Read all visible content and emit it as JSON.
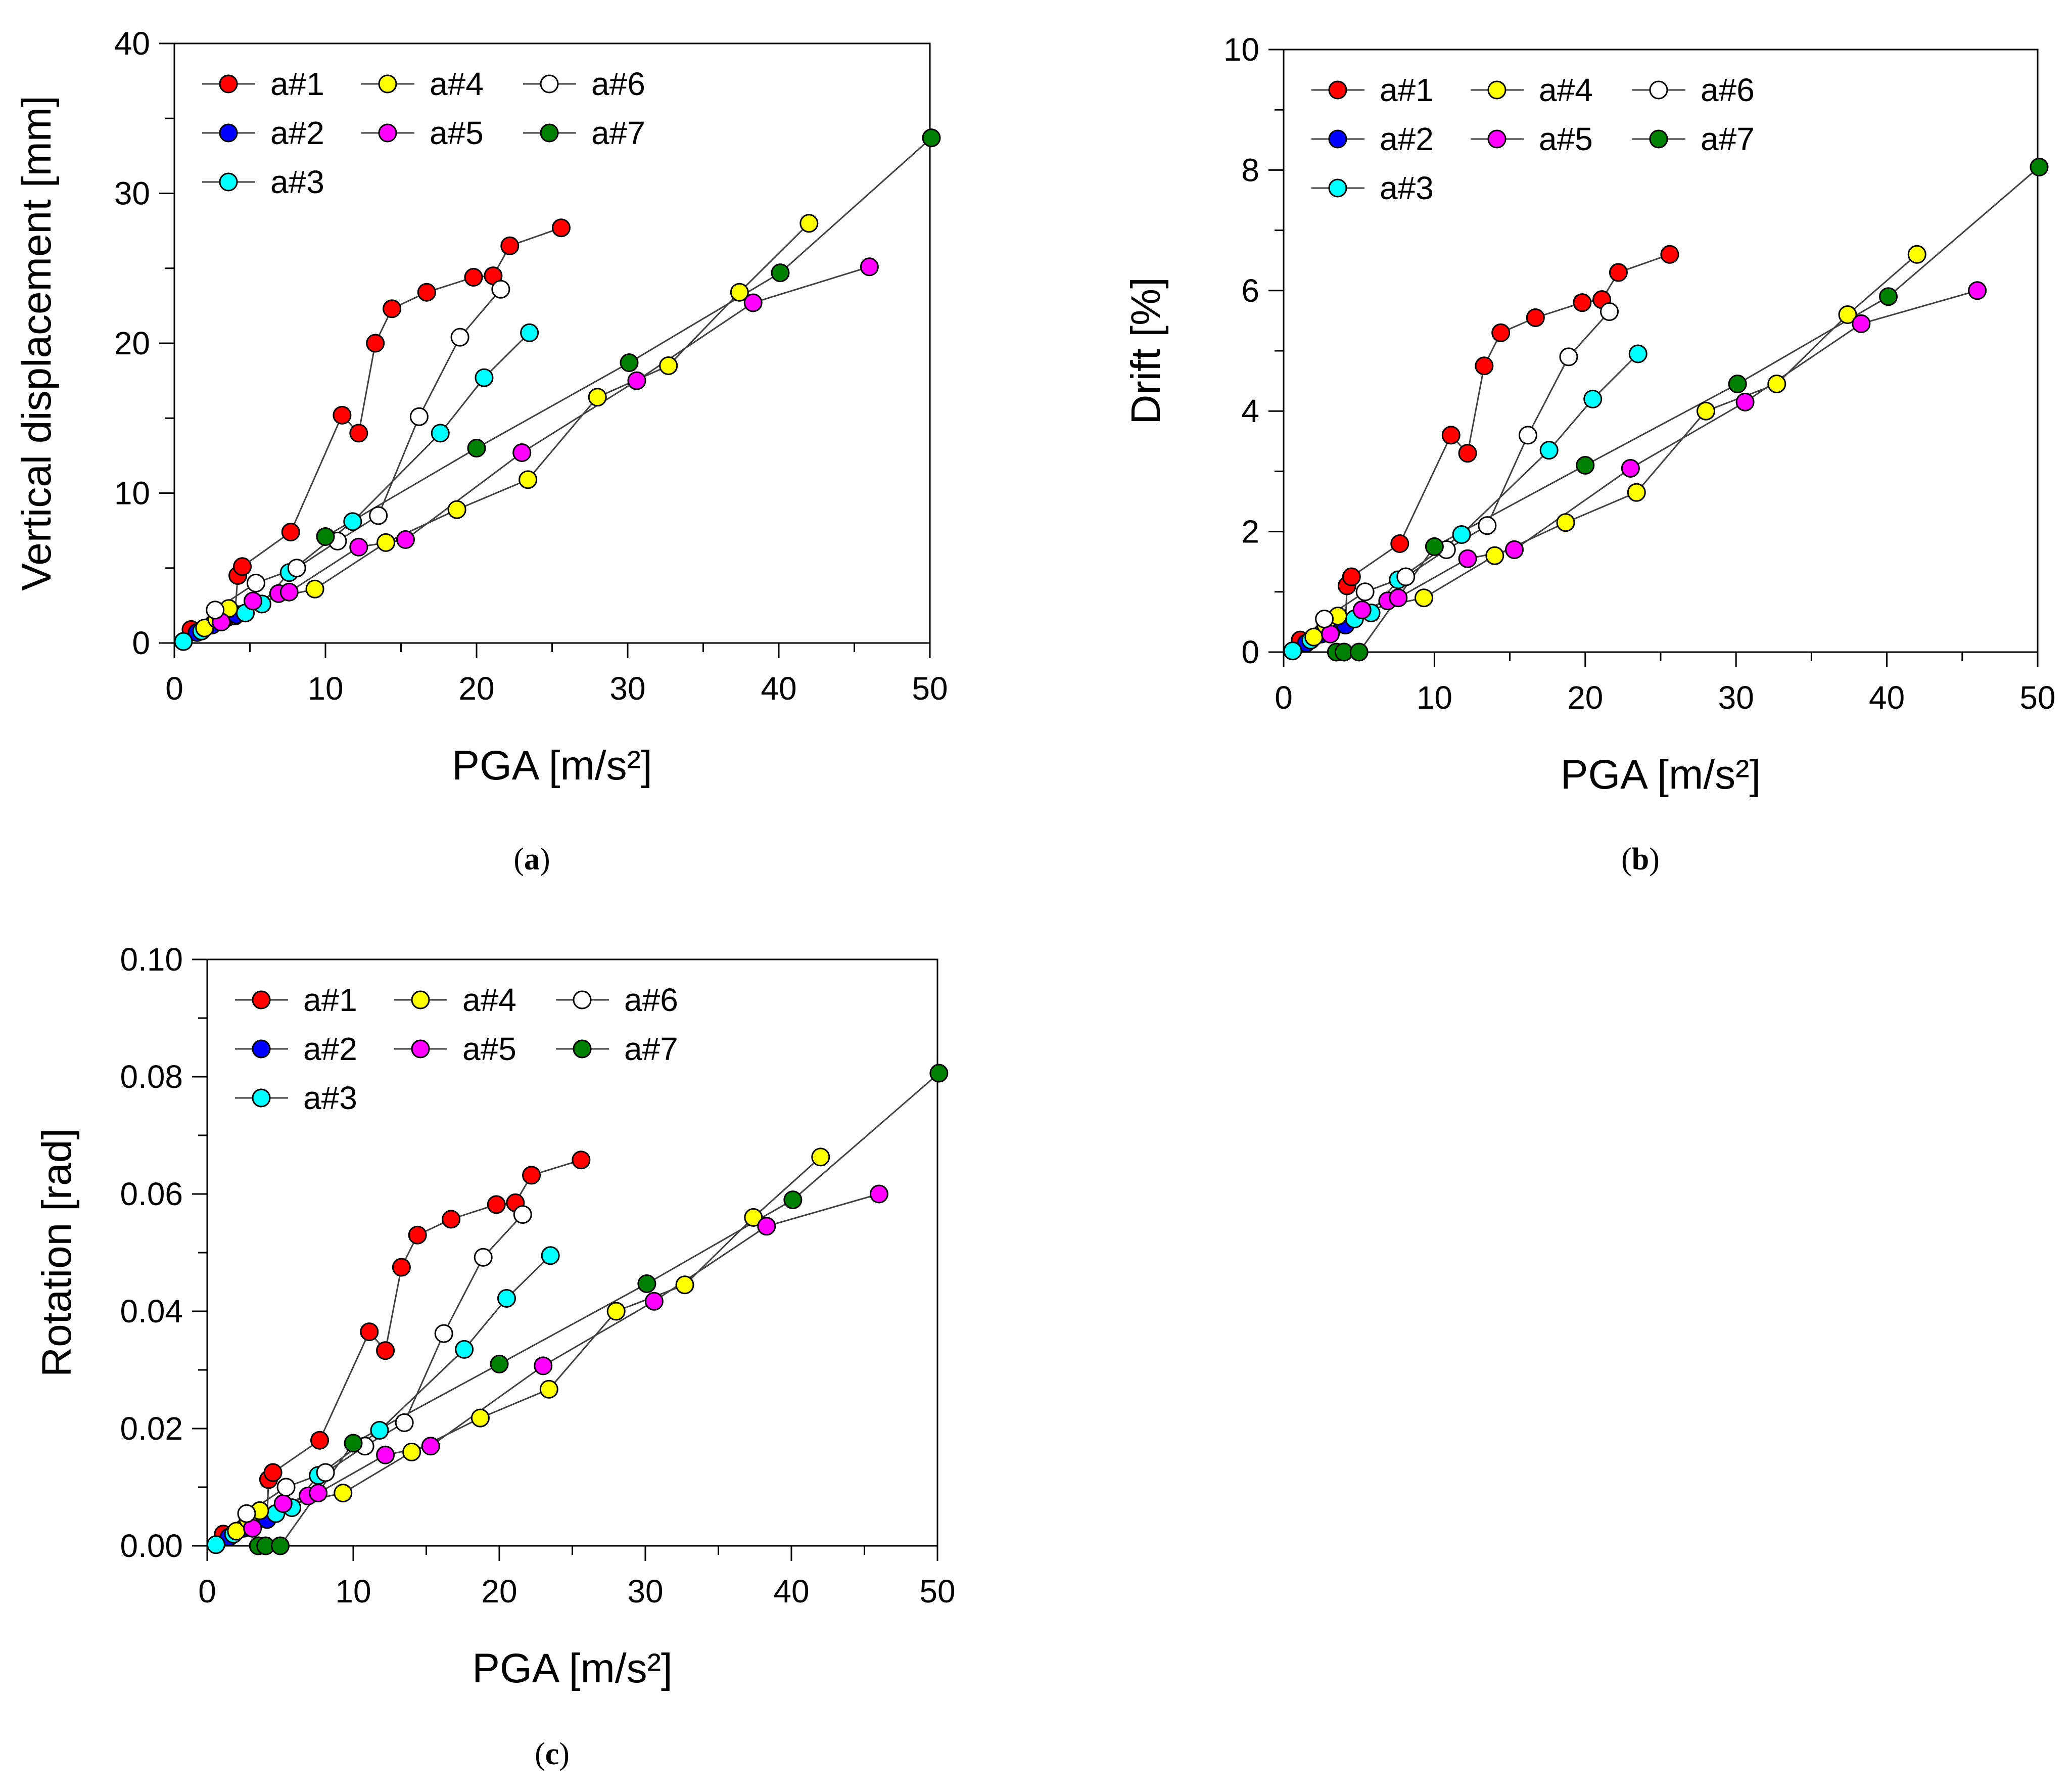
{
  "chart_data": [
    {
      "type": "line",
      "panel_label": "(a)",
      "panel_letter": "a",
      "xlabel": "PGA  [m/s²]",
      "ylabel": "Vertical displacement [mm]",
      "xlim": [
        0,
        50
      ],
      "ylim": [
        0,
        40
      ],
      "xticks": [
        0,
        10,
        20,
        30,
        40,
        50
      ],
      "yticks": [
        0,
        10,
        20,
        30,
        40
      ],
      "legend": "top-left",
      "series": [
        {
          "name": "a#1",
          "color": "#ff0000",
          "x": [
            1.1,
            3.5,
            4.0,
            4.2,
            4.5,
            7.7,
            11.1,
            12.2,
            13.3,
            14.4,
            16.7,
            19.8,
            21.1,
            22.2,
            25.6
          ],
          "y": [
            0.9,
            1.7,
            1.8,
            4.5,
            5.1,
            7.4,
            15.2,
            14.0,
            20.0,
            22.3,
            23.4,
            24.4,
            24.5,
            26.5,
            27.7
          ]
        },
        {
          "name": "a#2",
          "color": "#0000ff",
          "x": [
            0.6,
            1.5,
            2.5,
            3.2,
            4.1
          ],
          "y": [
            0.1,
            0.7,
            1.2,
            1.5,
            1.9
          ]
        },
        {
          "name": "a#3",
          "color": "#00ffff",
          "x": [
            0.6,
            1.8,
            4.7,
            5.8,
            7.6,
            11.8,
            17.6,
            20.5,
            23.5
          ],
          "y": [
            0.1,
            0.8,
            2.0,
            2.6,
            4.7,
            8.1,
            14.0,
            17.7,
            20.7
          ]
        },
        {
          "name": "a#4",
          "color": "#ffff00",
          "x": [
            2.0,
            2.8,
            3.6,
            9.3,
            14.0,
            18.7,
            23.4,
            28.0,
            32.7,
            37.4,
            42.0
          ],
          "y": [
            1.0,
            1.6,
            2.3,
            3.6,
            6.7,
            8.9,
            10.9,
            16.4,
            18.5,
            23.4,
            28.0
          ]
        },
        {
          "name": "a#5",
          "color": "#ff00ff",
          "x": [
            3.1,
            5.2,
            6.9,
            7.6,
            12.2,
            15.3,
            23.0,
            30.6,
            38.3,
            46.0
          ],
          "y": [
            1.4,
            2.8,
            3.3,
            3.4,
            6.4,
            6.9,
            12.7,
            17.5,
            22.7,
            25.1
          ]
        },
        {
          "name": "a#6",
          "color": "#ffffff",
          "x": [
            2.7,
            5.4,
            8.1,
            10.8,
            13.5,
            16.2,
            18.9,
            21.6
          ],
          "y": [
            2.2,
            4.0,
            5.0,
            6.8,
            8.5,
            15.1,
            20.4,
            23.6
          ]
        },
        {
          "name": "a#7",
          "color": "#008000",
          "x": [
            10.0,
            20.0,
            30.1,
            40.1,
            50.1
          ],
          "y": [
            7.1,
            13.0,
            18.7,
            24.7,
            33.7
          ]
        }
      ]
    },
    {
      "type": "line",
      "panel_label": "(b)",
      "panel_letter": "b",
      "xlabel": "PGA  [m/s²]",
      "ylabel": "Drift [%]",
      "xlim": [
        0,
        50
      ],
      "ylim": [
        0,
        10
      ],
      "xticks": [
        0,
        10,
        20,
        30,
        40,
        50
      ],
      "yticks": [
        0,
        2,
        4,
        6,
        8,
        10
      ],
      "legend": "top-left",
      "series": [
        {
          "name": "a#1",
          "color": "#ff0000",
          "x": [
            1.1,
            3.5,
            4.1,
            4.2,
            4.5,
            7.7,
            11.1,
            12.2,
            13.3,
            14.4,
            16.7,
            19.8,
            21.1,
            22.2,
            25.6
          ],
          "y": [
            0.2,
            0.45,
            0.45,
            1.1,
            1.25,
            1.8,
            3.6,
            3.3,
            4.75,
            5.3,
            5.55,
            5.8,
            5.85,
            6.3,
            6.6
          ]
        },
        {
          "name": "a#2",
          "color": "#0000ff",
          "x": [
            0.6,
            1.5,
            2.5,
            3.2,
            4.1
          ],
          "y": [
            0.02,
            0.15,
            0.3,
            0.4,
            0.45
          ]
        },
        {
          "name": "a#3",
          "color": "#00ffff",
          "x": [
            0.6,
            1.8,
            4.7,
            5.8,
            7.6,
            11.8,
            17.6,
            20.5,
            23.5
          ],
          "y": [
            0.02,
            0.2,
            0.55,
            0.65,
            1.2,
            1.95,
            3.35,
            4.2,
            4.95
          ]
        },
        {
          "name": "a#4",
          "color": "#ffff00",
          "x": [
            2.0,
            2.8,
            3.6,
            9.3,
            14.0,
            18.7,
            23.4,
            28.0,
            32.7,
            37.4,
            42.0
          ],
          "y": [
            0.25,
            0.45,
            0.6,
            0.9,
            1.6,
            2.15,
            2.65,
            4.0,
            4.45,
            5.6,
            6.6
          ]
        },
        {
          "name": "a#5",
          "color": "#ff00ff",
          "x": [
            3.1,
            5.2,
            6.9,
            7.6,
            12.2,
            15.3,
            23.0,
            30.6,
            38.3,
            46.0
          ],
          "y": [
            0.3,
            0.7,
            0.85,
            0.9,
            1.55,
            1.7,
            3.05,
            4.15,
            5.45,
            6.0
          ]
        },
        {
          "name": "a#6",
          "color": "#ffffff",
          "x": [
            2.7,
            5.4,
            8.1,
            10.8,
            13.5,
            16.2,
            18.9,
            21.6
          ],
          "y": [
            0.55,
            1.0,
            1.25,
            1.7,
            2.1,
            3.6,
            4.9,
            5.65
          ]
        },
        {
          "name": "a#7",
          "color": "#008000",
          "x": [
            3.5,
            4.0,
            5.0,
            10.0,
            20.0,
            30.1,
            40.1,
            50.1
          ],
          "y": [
            0.0,
            0.0,
            0.0,
            1.75,
            3.1,
            4.45,
            5.9,
            8.05
          ]
        }
      ]
    },
    {
      "type": "line",
      "panel_label": "(c)",
      "panel_letter": "c",
      "xlabel": "PGA  [m/s²]",
      "ylabel": "Rotation [rad]",
      "xlim": [
        0,
        50
      ],
      "ylim": [
        0,
        0.1
      ],
      "xticks": [
        0,
        10,
        20,
        30,
        40,
        50
      ],
      "yticks": [
        0.0,
        0.02,
        0.04,
        0.06,
        0.08,
        0.1
      ],
      "ytick_labels": [
        "0.00",
        "0.02",
        "0.04",
        "0.06",
        "0.08",
        "0.10"
      ],
      "legend": "top-left",
      "series": [
        {
          "name": "a#1",
          "color": "#ff0000",
          "x": [
            1.1,
            3.5,
            4.1,
            4.2,
            4.5,
            7.7,
            11.1,
            12.2,
            13.3,
            14.4,
            16.7,
            19.8,
            21.1,
            22.2,
            25.6
          ],
          "y": [
            0.002,
            0.0045,
            0.0045,
            0.0113,
            0.0125,
            0.018,
            0.0365,
            0.0333,
            0.0475,
            0.053,
            0.0557,
            0.0582,
            0.0585,
            0.0632,
            0.0658
          ]
        },
        {
          "name": "a#2",
          "color": "#0000ff",
          "x": [
            0.6,
            1.5,
            2.5,
            3.2,
            4.1
          ],
          "y": [
            0.0002,
            0.0015,
            0.003,
            0.004,
            0.0045
          ]
        },
        {
          "name": "a#3",
          "color": "#00ffff",
          "x": [
            0.6,
            1.8,
            4.7,
            5.8,
            7.6,
            11.8,
            17.6,
            20.5,
            23.5
          ],
          "y": [
            0.0002,
            0.002,
            0.0055,
            0.0065,
            0.012,
            0.0197,
            0.0335,
            0.0422,
            0.0495
          ]
        },
        {
          "name": "a#4",
          "color": "#ffff00",
          "x": [
            2.0,
            2.8,
            3.6,
            9.3,
            14.0,
            18.7,
            23.4,
            28.0,
            32.7,
            37.4,
            42.0
          ],
          "y": [
            0.0025,
            0.0045,
            0.006,
            0.009,
            0.016,
            0.0218,
            0.0267,
            0.04,
            0.0445,
            0.056,
            0.0663
          ]
        },
        {
          "name": "a#5",
          "color": "#ff00ff",
          "x": [
            3.1,
            5.2,
            6.9,
            7.6,
            12.2,
            15.3,
            23.0,
            30.6,
            38.3,
            46.0
          ],
          "y": [
            0.003,
            0.0072,
            0.0085,
            0.009,
            0.0155,
            0.017,
            0.0307,
            0.0417,
            0.0545,
            0.06
          ]
        },
        {
          "name": "a#6",
          "color": "#ffffff",
          "x": [
            2.7,
            5.4,
            8.1,
            10.8,
            13.5,
            16.2,
            18.9,
            21.6
          ],
          "y": [
            0.0055,
            0.01,
            0.0125,
            0.017,
            0.021,
            0.0362,
            0.0492,
            0.0565
          ]
        },
        {
          "name": "a#7",
          "color": "#008000",
          "x": [
            3.5,
            4.0,
            5.0,
            10.0,
            20.0,
            30.1,
            40.1,
            50.1
          ],
          "y": [
            0.0,
            0.0,
            0.0,
            0.0175,
            0.031,
            0.0447,
            0.059,
            0.0806
          ]
        }
      ]
    }
  ]
}
